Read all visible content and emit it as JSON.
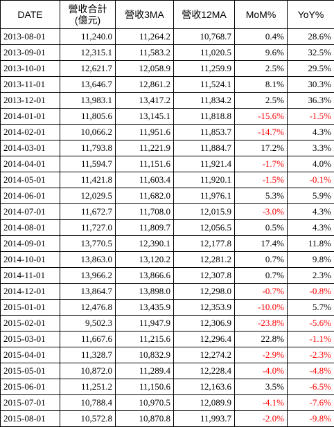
{
  "table": {
    "headers": {
      "date": "DATE",
      "revenue_line1": "營收合計",
      "revenue_line2": "(億元)",
      "ma3": "營收3MA",
      "ma12": "營收12MA",
      "mom": "MoM%",
      "yoy": "YoY%"
    },
    "rows": [
      {
        "date": "2013-08-01",
        "revenue": "11,240.0",
        "ma3": "11,264.2",
        "ma12": "10,768.7",
        "mom": "0.4%",
        "yoy": "28.6%"
      },
      {
        "date": "2013-09-01",
        "revenue": "12,315.1",
        "ma3": "11,583.2",
        "ma12": "11,020.5",
        "mom": "9.6%",
        "yoy": "32.5%"
      },
      {
        "date": "2013-10-01",
        "revenue": "12,621.7",
        "ma3": "12,058.9",
        "ma12": "11,259.9",
        "mom": "2.5%",
        "yoy": "29.5%"
      },
      {
        "date": "2013-11-01",
        "revenue": "13,646.7",
        "ma3": "12,861.2",
        "ma12": "11,524.1",
        "mom": "8.1%",
        "yoy": "30.3%"
      },
      {
        "date": "2013-12-01",
        "revenue": "13,983.1",
        "ma3": "13,417.2",
        "ma12": "11,834.2",
        "mom": "2.5%",
        "yoy": "36.3%"
      },
      {
        "date": "2014-01-01",
        "revenue": "11,805.6",
        "ma3": "13,145.1",
        "ma12": "11,818.8",
        "mom": "-15.6%",
        "yoy": "-1.5%"
      },
      {
        "date": "2014-02-01",
        "revenue": "10,066.2",
        "ma3": "11,951.6",
        "ma12": "11,853.7",
        "mom": "-14.7%",
        "yoy": "4.3%"
      },
      {
        "date": "2014-03-01",
        "revenue": "11,793.8",
        "ma3": "11,221.9",
        "ma12": "11,884.7",
        "mom": "17.2%",
        "yoy": "3.3%"
      },
      {
        "date": "2014-04-01",
        "revenue": "11,594.7",
        "ma3": "11,151.6",
        "ma12": "11,921.4",
        "mom": "-1.7%",
        "yoy": "4.0%"
      },
      {
        "date": "2014-05-01",
        "revenue": "11,421.8",
        "ma3": "11,603.4",
        "ma12": "11,920.1",
        "mom": "-1.5%",
        "yoy": "-0.1%"
      },
      {
        "date": "2014-06-01",
        "revenue": "12,029.5",
        "ma3": "11,682.0",
        "ma12": "11,976.1",
        "mom": "5.3%",
        "yoy": "5.9%"
      },
      {
        "date": "2014-07-01",
        "revenue": "11,672.7",
        "ma3": "11,708.0",
        "ma12": "12,015.9",
        "mom": "-3.0%",
        "yoy": "4.3%"
      },
      {
        "date": "2014-08-01",
        "revenue": "11,727.0",
        "ma3": "11,809.7",
        "ma12": "12,056.5",
        "mom": "0.5%",
        "yoy": "4.3%"
      },
      {
        "date": "2014-09-01",
        "revenue": "13,770.5",
        "ma3": "12,390.1",
        "ma12": "12,177.8",
        "mom": "17.4%",
        "yoy": "11.8%"
      },
      {
        "date": "2014-10-01",
        "revenue": "13,863.0",
        "ma3": "13,120.2",
        "ma12": "12,281.2",
        "mom": "0.7%",
        "yoy": "9.8%"
      },
      {
        "date": "2014-11-01",
        "revenue": "13,966.2",
        "ma3": "13,866.6",
        "ma12": "12,307.8",
        "mom": "0.7%",
        "yoy": "2.3%"
      },
      {
        "date": "2014-12-01",
        "revenue": "13,864.7",
        "ma3": "13,898.0",
        "ma12": "12,298.0",
        "mom": "-0.7%",
        "yoy": "-0.8%"
      },
      {
        "date": "2015-01-01",
        "revenue": "12,476.8",
        "ma3": "13,435.9",
        "ma12": "12,353.9",
        "mom": "-10.0%",
        "yoy": "5.7%"
      },
      {
        "date": "2015-02-01",
        "revenue": "9,502.3",
        "ma3": "11,947.9",
        "ma12": "12,306.9",
        "mom": "-23.8%",
        "yoy": "-5.6%"
      },
      {
        "date": "2015-03-01",
        "revenue": "11,667.6",
        "ma3": "11,215.6",
        "ma12": "12,296.4",
        "mom": "22.8%",
        "yoy": "-1.1%"
      },
      {
        "date": "2015-04-01",
        "revenue": "11,328.7",
        "ma3": "10,832.9",
        "ma12": "12,274.2",
        "mom": "-2.9%",
        "yoy": "-2.3%"
      },
      {
        "date": "2015-05-01",
        "revenue": "10,872.0",
        "ma3": "11,289.4",
        "ma12": "12,228.4",
        "mom": "-4.0%",
        "yoy": "-4.8%"
      },
      {
        "date": "2015-06-01",
        "revenue": "11,251.2",
        "ma3": "11,150.6",
        "ma12": "12,163.6",
        "mom": "3.5%",
        "yoy": "-6.5%"
      },
      {
        "date": "2015-07-01",
        "revenue": "10,788.4",
        "ma3": "10,970.5",
        "ma12": "12,089.9",
        "mom": "-4.1%",
        "yoy": "-7.6%"
      },
      {
        "date": "2015-08-01",
        "revenue": "10,572.8",
        "ma3": "10,870.8",
        "ma12": "11,993.7",
        "mom": "-2.0%",
        "yoy": "-9.8%"
      }
    ]
  },
  "colors": {
    "negative": "#ff0000",
    "positive": "#000000",
    "border": "#000000",
    "background": "#ffffff"
  }
}
